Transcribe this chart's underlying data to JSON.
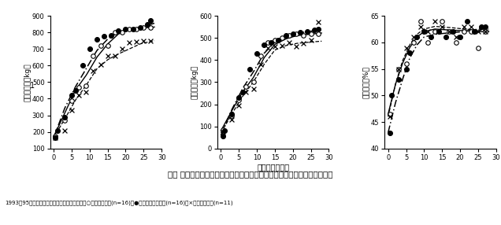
{
  "fig_title": "図． 各育成方式後の肥育期における体重，枝肉重量および枝肉歩留の変化",
  "fig_subtitle": "1993～95年育成牛の連続屠畜法による結果．　○実線：幅検区(n=16)，●一点鎖線：連続区(n=16)，×破線：舎飼区(n=11)",
  "xlabel": "肥育期間（月）",
  "panels": [
    {
      "ylabel": "屠殺前体重（kg）",
      "ylim": [
        100,
        900
      ],
      "yticks": [
        100,
        200,
        300,
        400,
        500,
        600,
        700,
        800,
        900
      ],
      "xlim": [
        -1,
        30
      ],
      "xticks": [
        0,
        5,
        10,
        15,
        20,
        25,
        30
      ],
      "note": "1",
      "data_open_x": [
        0.5,
        3,
        5,
        7,
        9,
        11,
        13,
        15,
        17,
        19,
        21,
        23,
        25,
        27
      ],
      "data_open_y": [
        175,
        270,
        390,
        470,
        480,
        660,
        720,
        720,
        800,
        800,
        820,
        820,
        830,
        830
      ],
      "data_filled_x": [
        0.5,
        1,
        3,
        5,
        6,
        8,
        10,
        12,
        14,
        16,
        18,
        20,
        22,
        24,
        26,
        27
      ],
      "data_filled_y": [
        165,
        210,
        290,
        420,
        450,
        600,
        700,
        760,
        775,
        780,
        810,
        820,
        820,
        830,
        850,
        870
      ],
      "data_cross_x": [
        0.5,
        3,
        5,
        7,
        9,
        11,
        13,
        15,
        17,
        19,
        21,
        23,
        25,
        27
      ],
      "data_cross_y": [
        165,
        210,
        330,
        420,
        440,
        570,
        605,
        660,
        660,
        700,
        740,
        745,
        750,
        750
      ],
      "curve_open_x": [
        0,
        3,
        6,
        9,
        12,
        15,
        18,
        21,
        24,
        27,
        28
      ],
      "curve_open_y": [
        170,
        310,
        450,
        540,
        650,
        730,
        790,
        815,
        825,
        830,
        832
      ],
      "curve_filled_x": [
        0,
        3,
        6,
        9,
        12,
        15,
        18,
        21,
        24,
        27,
        28
      ],
      "curve_filled_y": [
        165,
        340,
        470,
        580,
        690,
        760,
        800,
        820,
        830,
        848,
        855
      ],
      "curve_cross_x": [
        0,
        3,
        6,
        9,
        12,
        15,
        18,
        21,
        24,
        27,
        28
      ],
      "curve_cross_y": [
        165,
        275,
        390,
        480,
        580,
        635,
        670,
        700,
        730,
        745,
        750
      ]
    },
    {
      "ylabel": "枝肉重量（kg）",
      "ylim": [
        0,
        600
      ],
      "yticks": [
        0,
        100,
        200,
        300,
        400,
        500,
        600
      ],
      "xlim": [
        -1,
        30
      ],
      "xticks": [
        0,
        5,
        10,
        15,
        20,
        25,
        30
      ],
      "note": "",
      "data_open_x": [
        0.5,
        3,
        5,
        7,
        9,
        11,
        13,
        15,
        17,
        19,
        21,
        23,
        25,
        27
      ],
      "data_open_y": [
        85,
        150,
        220,
        280,
        300,
        420,
        480,
        490,
        500,
        510,
        520,
        510,
        520,
        520
      ],
      "data_filled_x": [
        0.5,
        1,
        3,
        5,
        6,
        8,
        10,
        12,
        14,
        16,
        18,
        20,
        22,
        24,
        26,
        27
      ],
      "data_filled_y": [
        55,
        80,
        155,
        230,
        255,
        360,
        430,
        470,
        480,
        490,
        510,
        520,
        525,
        530,
        535,
        540
      ],
      "data_cross_x": [
        0.5,
        3,
        5,
        7,
        9,
        11,
        13,
        15,
        17,
        19,
        21,
        23,
        25,
        27
      ],
      "data_cross_y": [
        75,
        130,
        195,
        255,
        270,
        380,
        455,
        460,
        465,
        480,
        460,
        475,
        490,
        570
      ],
      "curve_open_x": [
        0,
        3,
        6,
        9,
        12,
        15,
        18,
        21,
        24,
        27,
        28
      ],
      "curve_open_y": [
        80,
        170,
        255,
        320,
        410,
        470,
        495,
        510,
        515,
        520,
        522
      ],
      "curve_filled_x": [
        0,
        3,
        6,
        9,
        12,
        15,
        18,
        21,
        24,
        27,
        28
      ],
      "curve_filled_y": [
        60,
        175,
        270,
        345,
        430,
        480,
        505,
        520,
        528,
        535,
        537
      ],
      "curve_cross_x": [
        0,
        3,
        6,
        9,
        12,
        15,
        18,
        21,
        24,
        27,
        28
      ],
      "curve_cross_y": [
        70,
        155,
        235,
        300,
        380,
        445,
        465,
        475,
        480,
        484,
        485
      ]
    },
    {
      "ylabel": "枝肉歩留（%）",
      "ylim": [
        40,
        65
      ],
      "yticks": [
        40,
        45,
        50,
        55,
        60,
        65
      ],
      "xlim": [
        -1,
        30
      ],
      "xticks": [
        0,
        5,
        10,
        15,
        20,
        25,
        30
      ],
      "note": "",
      "data_open_x": [
        0.5,
        3,
        5,
        7,
        9,
        11,
        13,
        15,
        17,
        19,
        21,
        23,
        25,
        27
      ],
      "data_open_y": [
        46.5,
        55,
        56,
        60,
        64,
        60,
        62,
        64,
        62,
        60,
        62,
        62,
        59,
        62
      ],
      "data_filled_x": [
        0.5,
        1,
        3,
        5,
        6,
        8,
        10,
        12,
        14,
        16,
        18,
        20,
        22,
        24,
        26,
        27
      ],
      "data_filled_y": [
        43,
        50,
        53,
        55,
        58,
        61,
        62,
        61,
        62,
        61,
        62,
        61,
        64,
        62,
        63,
        63
      ],
      "data_cross_x": [
        0.5,
        3,
        5,
        7,
        9,
        11,
        13,
        15,
        17,
        19,
        21,
        23,
        25,
        27
      ],
      "data_cross_y": [
        46,
        55,
        59,
        61,
        63,
        62,
        64,
        63,
        62,
        61,
        63,
        63,
        62,
        62
      ],
      "curve_open_x": [
        0,
        2,
        4,
        6,
        8,
        10,
        13,
        17,
        21,
        25,
        28
      ],
      "curve_open_y": [
        46.5,
        52,
        56,
        59,
        61,
        62,
        62.5,
        62.3,
        62.2,
        62.0,
        62.0
      ],
      "curve_filled_x": [
        0,
        2,
        4,
        6,
        8,
        10,
        13,
        17,
        21,
        25,
        28
      ],
      "curve_filled_y": [
        43,
        48.5,
        53,
        57,
        59.5,
        61,
        61.5,
        61.8,
        62.0,
        62.5,
        62.5
      ],
      "curve_cross_x": [
        0,
        2,
        4,
        6,
        8,
        10,
        13,
        17,
        21,
        25,
        28
      ],
      "curve_cross_y": [
        46,
        52,
        56.5,
        59.5,
        61.5,
        62.5,
        63,
        62.8,
        62.5,
        62.3,
        62.2
      ]
    }
  ]
}
